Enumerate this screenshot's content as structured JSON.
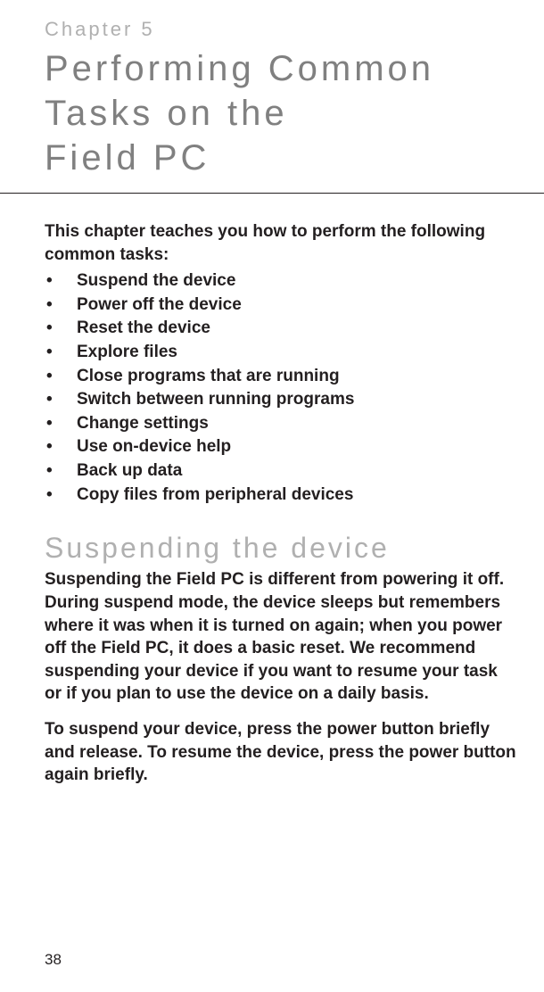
{
  "chapter_label": "Chapter 5",
  "chapter_title_line1": "Performing Common",
  "chapter_title_line2": "Tasks on the",
  "chapter_title_line3": "Field PC",
  "intro": "This chapter teaches you how to perform the following common tasks:",
  "tasks": [
    "Suspend the device",
    "Power off the device",
    "Reset the device",
    "Explore files",
    "Close programs that are running",
    "Switch between running programs",
    "Change settings",
    "Use on-device help",
    "Back up data",
    "Copy files from peripheral devices"
  ],
  "section_heading": "Suspending the device",
  "para1": "Suspending the Field PC is different from powering it off. During suspend mode, the device sleeps but remembers where it was when it is turned on again; when you power off the Field PC, it does a basic reset. We recommend suspending your device if you want to resume your task or if you plan to use the device on a daily basis.",
  "para2": "To suspend your device, press the power button briefly and release. To resume the device, press the power button again briefly.",
  "page_number": "38",
  "colors": {
    "body_text": "#231f20",
    "light_gray": "#b0b0b0",
    "mid_gray": "#808080",
    "background": "#ffffff"
  },
  "typography": {
    "chapter_label_size": 22,
    "chapter_title_size": 40,
    "section_heading_size": 32,
    "body_size": 19,
    "page_number_size": 17,
    "letter_spacing_wide": 4,
    "letter_spacing_med": 3
  }
}
